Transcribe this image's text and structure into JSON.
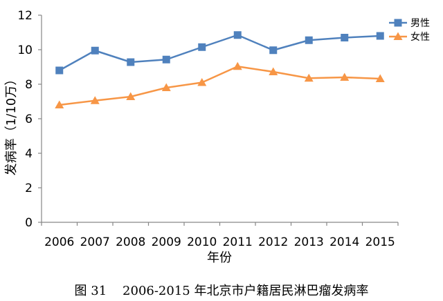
{
  "chart_data": {
    "type": "line",
    "title": "",
    "caption": "图 31    2006-2015 年北京市户籍居民淋巴瘤发病率",
    "xlabel": "年份",
    "ylabel": "发病率（1/10万）",
    "ylim": [
      0,
      12
    ],
    "yticks": [
      "0",
      "2",
      "4",
      "6",
      "8",
      "10",
      "12"
    ],
    "categories": [
      "2006",
      "2007",
      "2008",
      "2009",
      "2010",
      "2011",
      "2012",
      "2013",
      "2014",
      "2015"
    ],
    "grid": false,
    "legend_position": "top-right",
    "series": [
      {
        "name": "男性",
        "values": [
          8.8,
          9.95,
          9.28,
          9.43,
          10.15,
          10.85,
          9.97,
          10.55,
          10.7,
          10.8
        ],
        "color": "#4f81bd",
        "marker": "square"
      },
      {
        "name": "女性",
        "values": [
          6.8,
          7.05,
          7.28,
          7.8,
          8.1,
          9.03,
          8.72,
          8.35,
          8.4,
          8.32
        ],
        "color": "#f79646",
        "marker": "triangle"
      }
    ]
  }
}
